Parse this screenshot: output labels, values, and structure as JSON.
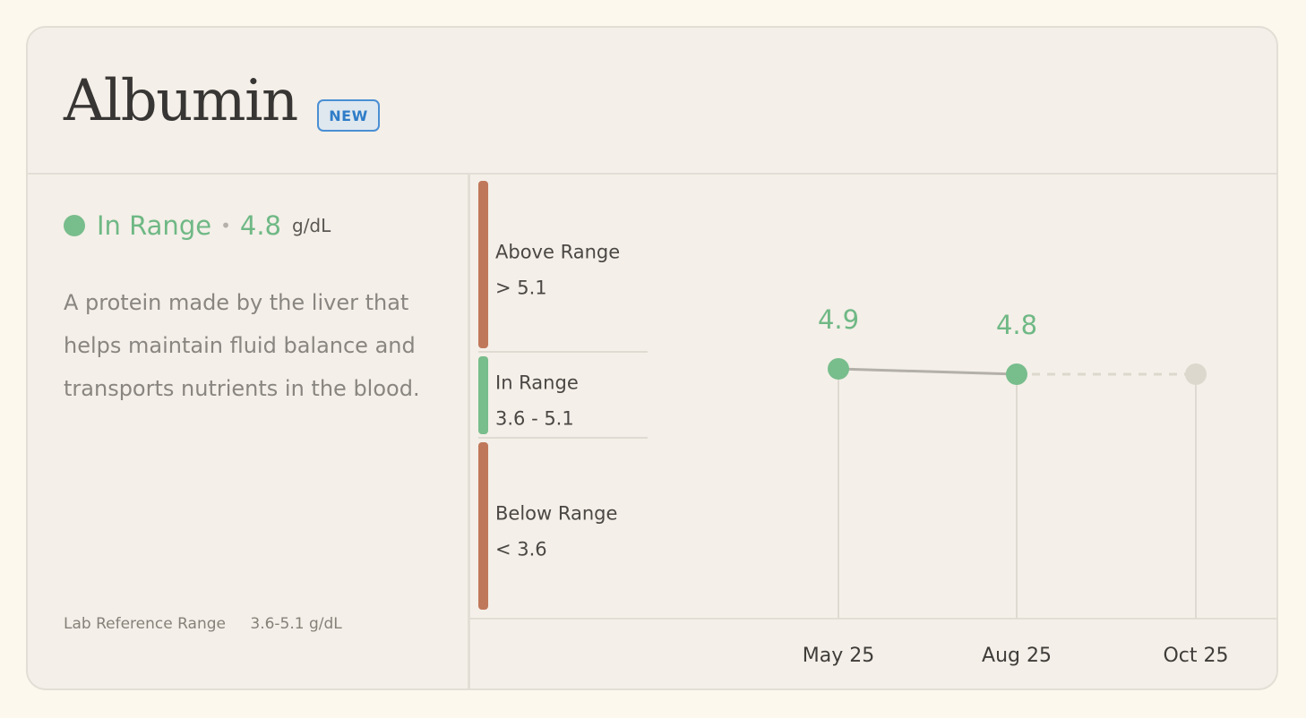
{
  "header": {
    "title": "Albumin",
    "badge": "NEW"
  },
  "summary": {
    "status": "In Range",
    "separator": "•",
    "value": "4.8",
    "unit": "g/dL",
    "description": "A protein made by the liver that helps maintain fluid balance and transports nutrients in the blood.",
    "reference_label": "Lab Reference Range",
    "reference_value": "3.6-5.1 g/dL"
  },
  "colors": {
    "in_range": "#78bd8c",
    "out_of_range": "#c0785a",
    "future_point": "#dcd8cd"
  },
  "chart_data": {
    "type": "line",
    "unit": "g/dL",
    "bands": [
      {
        "name": "Above Range",
        "label": "> 5.1",
        "status": "out",
        "min": 5.1,
        "max": null
      },
      {
        "name": "In Range",
        "label": "3.6 - 5.1",
        "status": "in",
        "min": 3.6,
        "max": 5.1
      },
      {
        "name": "Below Range",
        "label": "< 3.6",
        "status": "out",
        "min": null,
        "max": 3.6
      }
    ],
    "x": [
      "May 25",
      "Aug 25",
      "Oct 25"
    ],
    "values": [
      4.9,
      4.8,
      null
    ],
    "value_labels": [
      "4.9",
      "4.8",
      ""
    ],
    "projected_value": 4.8
  }
}
